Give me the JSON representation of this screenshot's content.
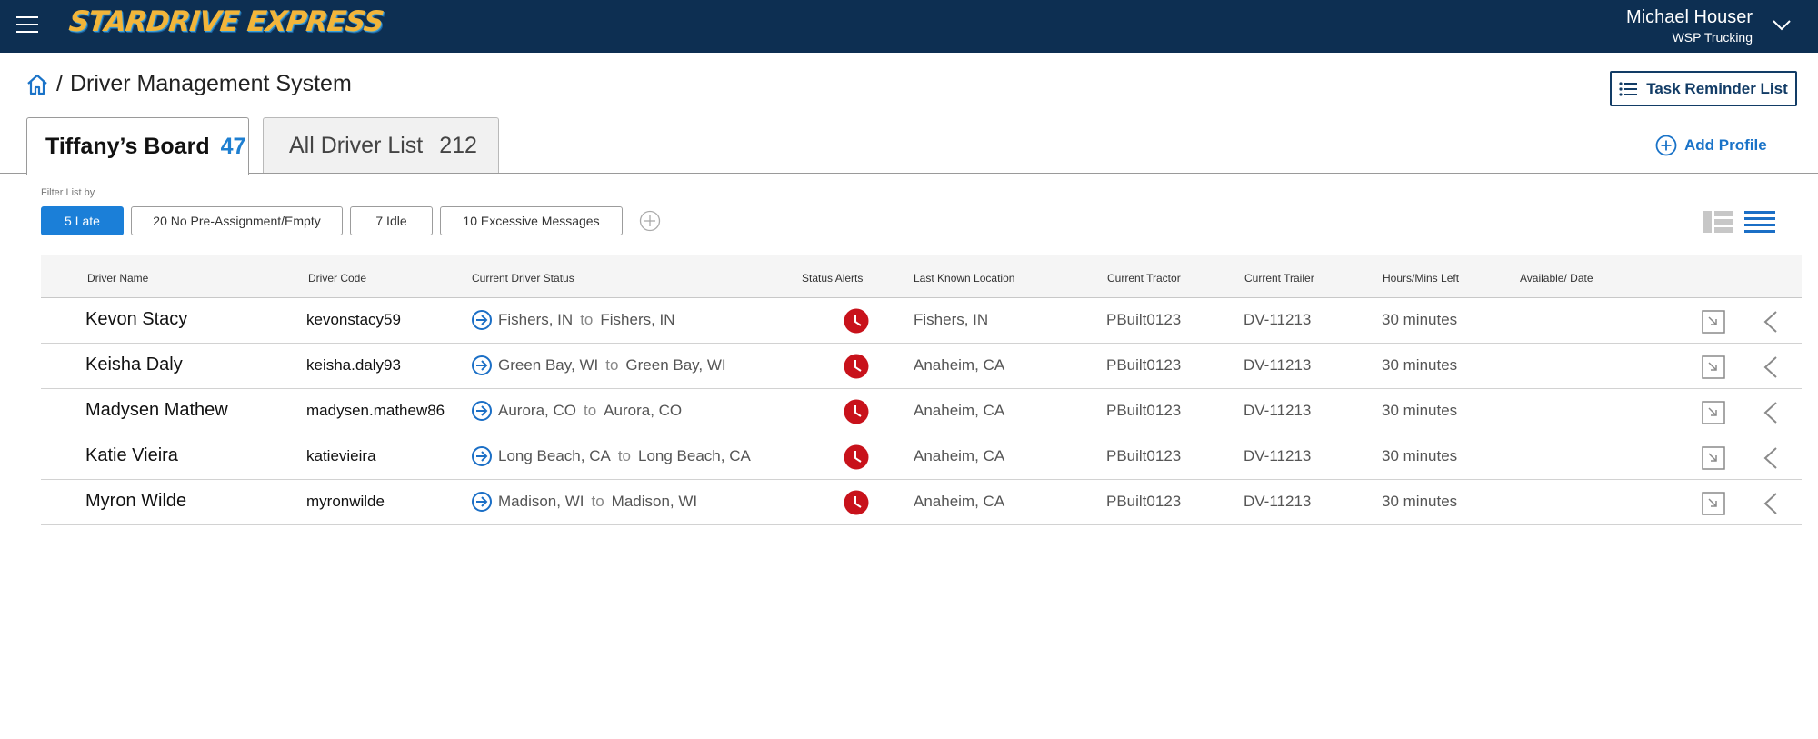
{
  "header": {
    "logo_text": "STARDRIVE EXPRESS",
    "user_name": "Michael Houser",
    "company": "WSP Trucking"
  },
  "breadcrumb": {
    "separator": "/",
    "page_title": "Driver Management System"
  },
  "actions": {
    "task_reminder_label": "Task Reminder List",
    "add_profile_label": "Add Profile"
  },
  "tabs": [
    {
      "label": "Tiffany’s Board",
      "count": "47"
    },
    {
      "label": "All Driver List",
      "count": "212"
    }
  ],
  "filters": {
    "label": "Filter List by",
    "chips": [
      "5 Late",
      "20 No Pre-Assignment/Empty",
      "7 Idle",
      "10 Excessive Messages"
    ]
  },
  "table": {
    "columns": [
      "Driver Name",
      "Driver Code",
      "Current Driver Status",
      "Status Alerts",
      "Last Known Location",
      "Current Tractor",
      "Current Trailer",
      "Hours/Mins Left",
      "Available/ Date"
    ],
    "to_word": "to",
    "rows": [
      {
        "name": "Kevon Stacy",
        "code": "kevonstacy59",
        "from": "Fishers, IN",
        "to": "Fishers, IN",
        "location": "Fishers, IN",
        "tractor": "PBuilt0123",
        "trailer": "DV-11213",
        "hours": "30 minutes"
      },
      {
        "name": "Keisha Daly",
        "code": "keisha.daly93",
        "from": "Green Bay, WI",
        "to": "Green Bay, WI",
        "location": "Anaheim, CA",
        "tractor": "PBuilt0123",
        "trailer": "DV-11213",
        "hours": "30 minutes"
      },
      {
        "name": "Madysen Mathew",
        "code": "madysen.mathew86",
        "from": "Aurora, CO",
        "to": "Aurora, CO",
        "location": "Anaheim, CA",
        "tractor": "PBuilt0123",
        "trailer": "DV-11213",
        "hours": "30 minutes"
      },
      {
        "name": "Katie Vieira",
        "code": "katievieira",
        "from": "Long Beach, CA",
        "to": "Long Beach, CA",
        "location": "Anaheim, CA",
        "tractor": "PBuilt0123",
        "trailer": "DV-11213",
        "hours": "30 minutes"
      },
      {
        "name": "Myron Wilde",
        "code": "myronwilde",
        "from": "Madison, WI",
        "to": "Madison, WI",
        "location": "Anaheim, CA",
        "tractor": "PBuilt0123",
        "trailer": "DV-11213",
        "hours": "30 minutes"
      }
    ]
  },
  "colors": {
    "topbar": "#0d2f52",
    "accent": "#1b7fd8",
    "alert": "#c8121b",
    "logo": "#f2b53a"
  },
  "icons": {
    "menu": "hamburger-menu-icon",
    "user_menu": "chevron-down-icon",
    "home": "home-icon",
    "task": "list-icon",
    "add": "plus-circle-icon",
    "filter_add": "plus-circle-icon",
    "view_split": "split-list-view-icon",
    "view_list": "list-view-icon",
    "status": "arrow-circle-icon",
    "alert": "clock-alert-icon",
    "open": "open-external-icon",
    "expand": "chevron-left-icon"
  }
}
